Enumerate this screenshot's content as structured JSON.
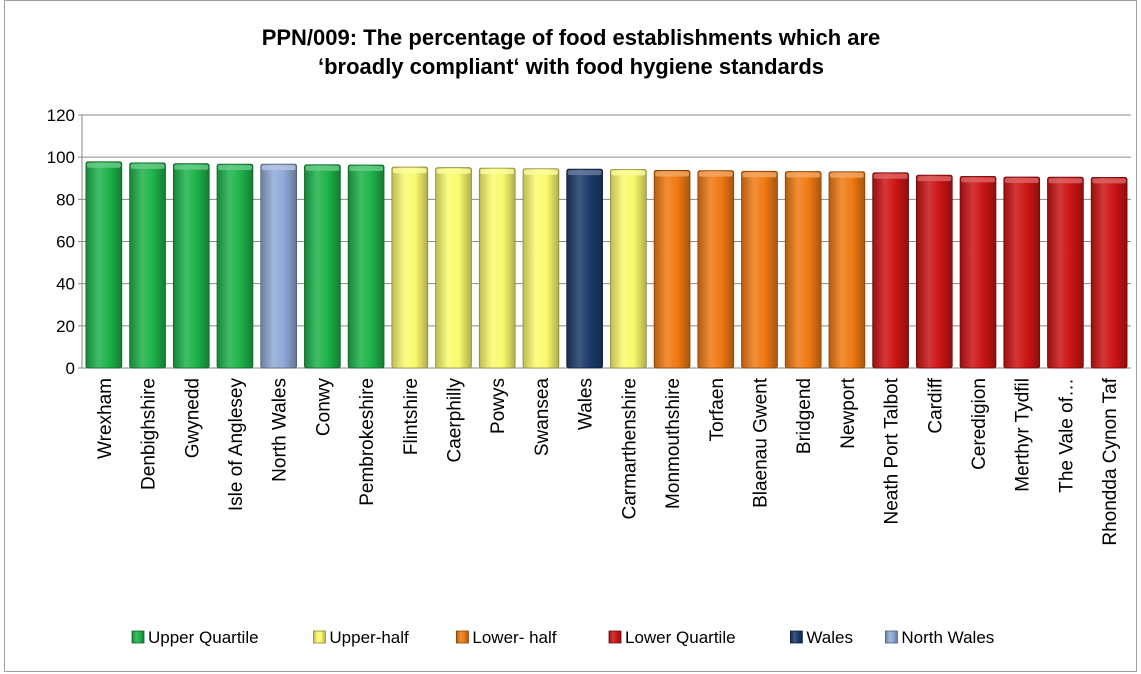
{
  "chart_data": {
    "type": "bar",
    "title_lines": [
      "PPN/009: The percentage of food establishments which are",
      "‘broadly compliant‘ with food hygiene standards"
    ],
    "xlabel": "",
    "ylabel": "",
    "ylim": [
      0,
      120
    ],
    "yticks": [
      0,
      20,
      40,
      60,
      80,
      100,
      120
    ],
    "grid": true,
    "legend_position": "bottom",
    "categories": [
      "Wrexham",
      "Denbighshire",
      "Gwynedd",
      "Isle of Anglesey",
      "North Wales",
      "Conwy",
      "Pembrokeshire",
      "Flintshire",
      "Caerphilly",
      "Powys",
      "Swansea",
      "Wales",
      "Carmarthenshire",
      "Monmouthshire",
      "Torfaen",
      "Blaenau Gwent",
      "Bridgend",
      "Newport",
      "Neath Port Talbot",
      "Cardiff",
      "Ceredigion",
      "Merthyr Tydfil",
      "The Vale of…",
      "Rhondda Cynon Taf"
    ],
    "values": [
      97.8,
      97.3,
      96.9,
      96.7,
      96.7,
      96.4,
      96.3,
      95.3,
      95.0,
      94.8,
      94.5,
      94.3,
      94.2,
      93.7,
      93.6,
      93.3,
      93.2,
      93.1,
      92.6,
      91.5,
      90.9,
      90.6,
      90.5,
      90.4
    ],
    "groups": [
      "Upper Quartile",
      "Upper Quartile",
      "Upper Quartile",
      "Upper Quartile",
      "North Wales",
      "Upper Quartile",
      "Upper Quartile",
      "Upper-half",
      "Upper-half",
      "Upper-half",
      "Upper-half",
      "Wales",
      "Upper-half",
      "Lower- half",
      "Lower- half",
      "Lower- half",
      "Lower- half",
      "Lower- half",
      "Lower Quartile",
      "Lower Quartile",
      "Lower Quartile",
      "Lower Quartile",
      "Lower Quartile",
      "Lower Quartile"
    ],
    "legend": [
      {
        "name": "Upper Quartile",
        "color": "#1db34a"
      },
      {
        "name": "Upper-half",
        "color": "#fafa6e"
      },
      {
        "name": "Lower- half",
        "color": "#f07a12"
      },
      {
        "name": "Lower Quartile",
        "color": "#cc1414"
      },
      {
        "name": "Wales",
        "color": "#1c3a6b"
      },
      {
        "name": "North Wales",
        "color": "#8fa9d6"
      }
    ]
  }
}
